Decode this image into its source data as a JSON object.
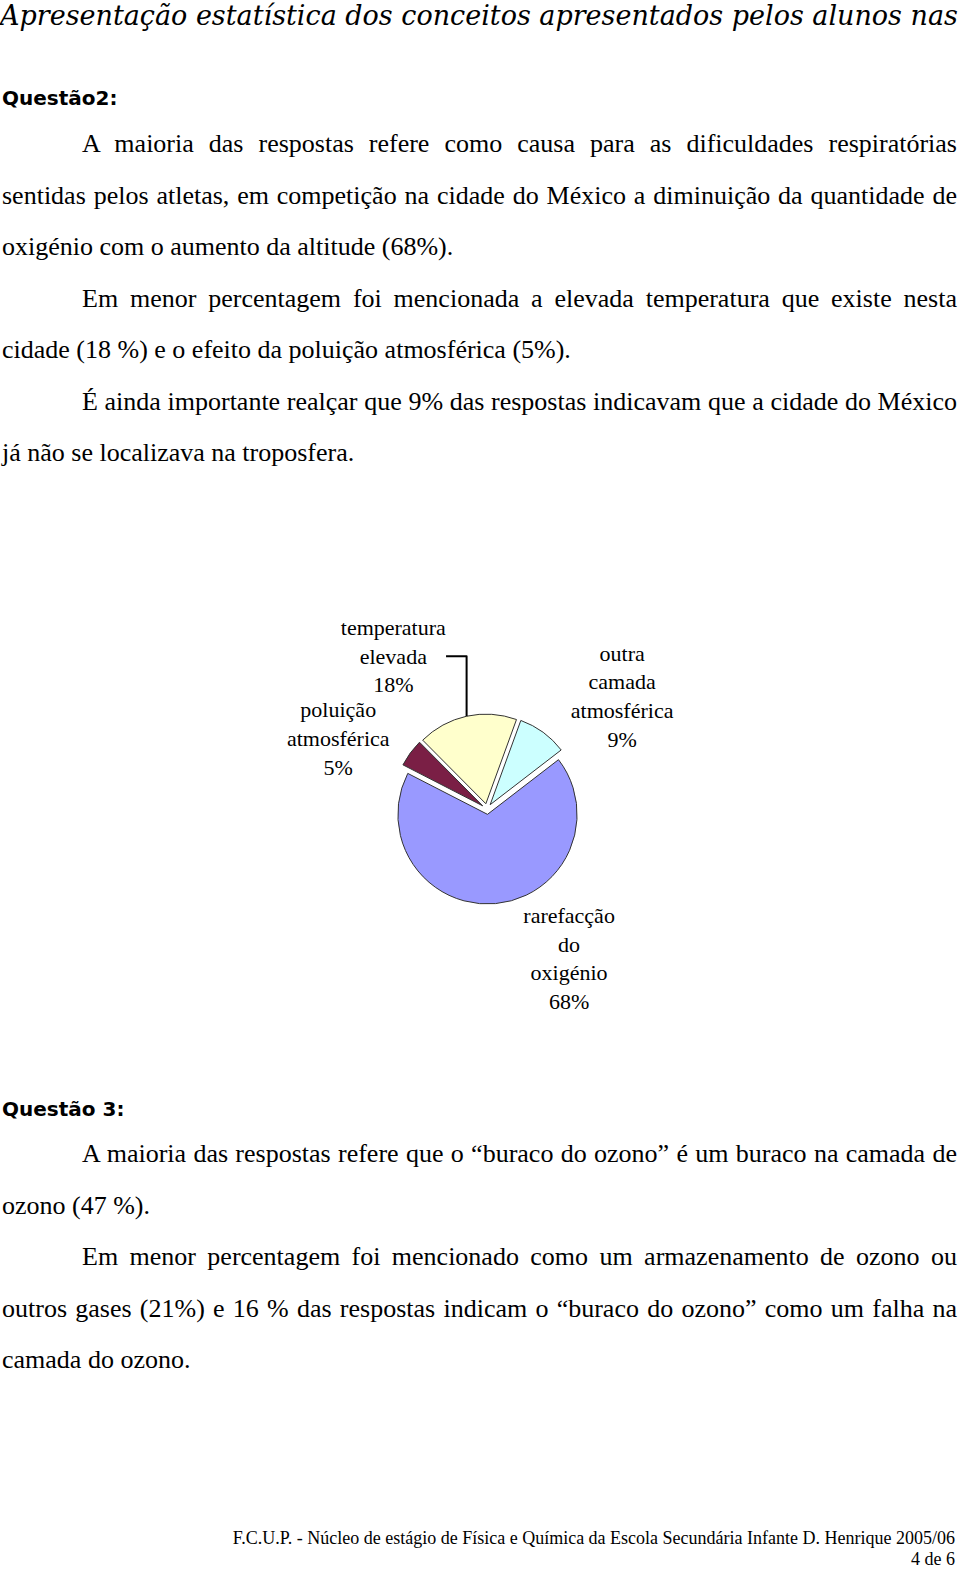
{
  "header": "Apresentação estatística dos conceitos apresentados pelos alunos nas respostas",
  "questions": [
    {
      "title": "Questão2:",
      "paragraphs": [
        "A maioria das respostas refere como causa para as dificuldades respiratórias sentidas pelos atletas, em competição na cidade do México a diminuição da quantidade de oxigénio com o aumento da altitude (68%).",
        "Em menor percentagem foi mencionada a elevada temperatura que existe nesta cidade (18 %) e o efeito da poluição atmosférica (5%).",
        "É ainda importante realçar que 9% das respostas indicavam que a cidade do México já não se localizava na troposfera."
      ]
    },
    {
      "title": "Questão 3:",
      "paragraphs": [
        "A maioria das respostas refere que o “buraco do ozono” é um buraco na camada de ozono (47 %).",
        "Em menor percentagem foi mencionado como um armazenamento de ozono ou outros gases (21%) e 16 % das respostas indicam o “buraco do ozono” como um falha na camada do ozono."
      ]
    }
  ],
  "chart_data": {
    "type": "pie",
    "categories": [
      "outra camada atmosférica",
      "rarefacção do oxigénio",
      "poluição atmosférica",
      "temperatura elevada"
    ],
    "values": [
      9,
      68,
      5,
      18
    ],
    "value_labels": [
      "9%",
      "68%",
      "5%",
      "18%"
    ],
    "colors": [
      "#ccffff",
      "#9999ff",
      "#7a1f45",
      "#ffffcc"
    ],
    "data_labels": true
  },
  "footer": {
    "text": "F.C.U.P. - Núcleo de estágio de Física e Química da Escola Secundária Infante D. Henrique 2005/06",
    "page": "4 de 6"
  }
}
